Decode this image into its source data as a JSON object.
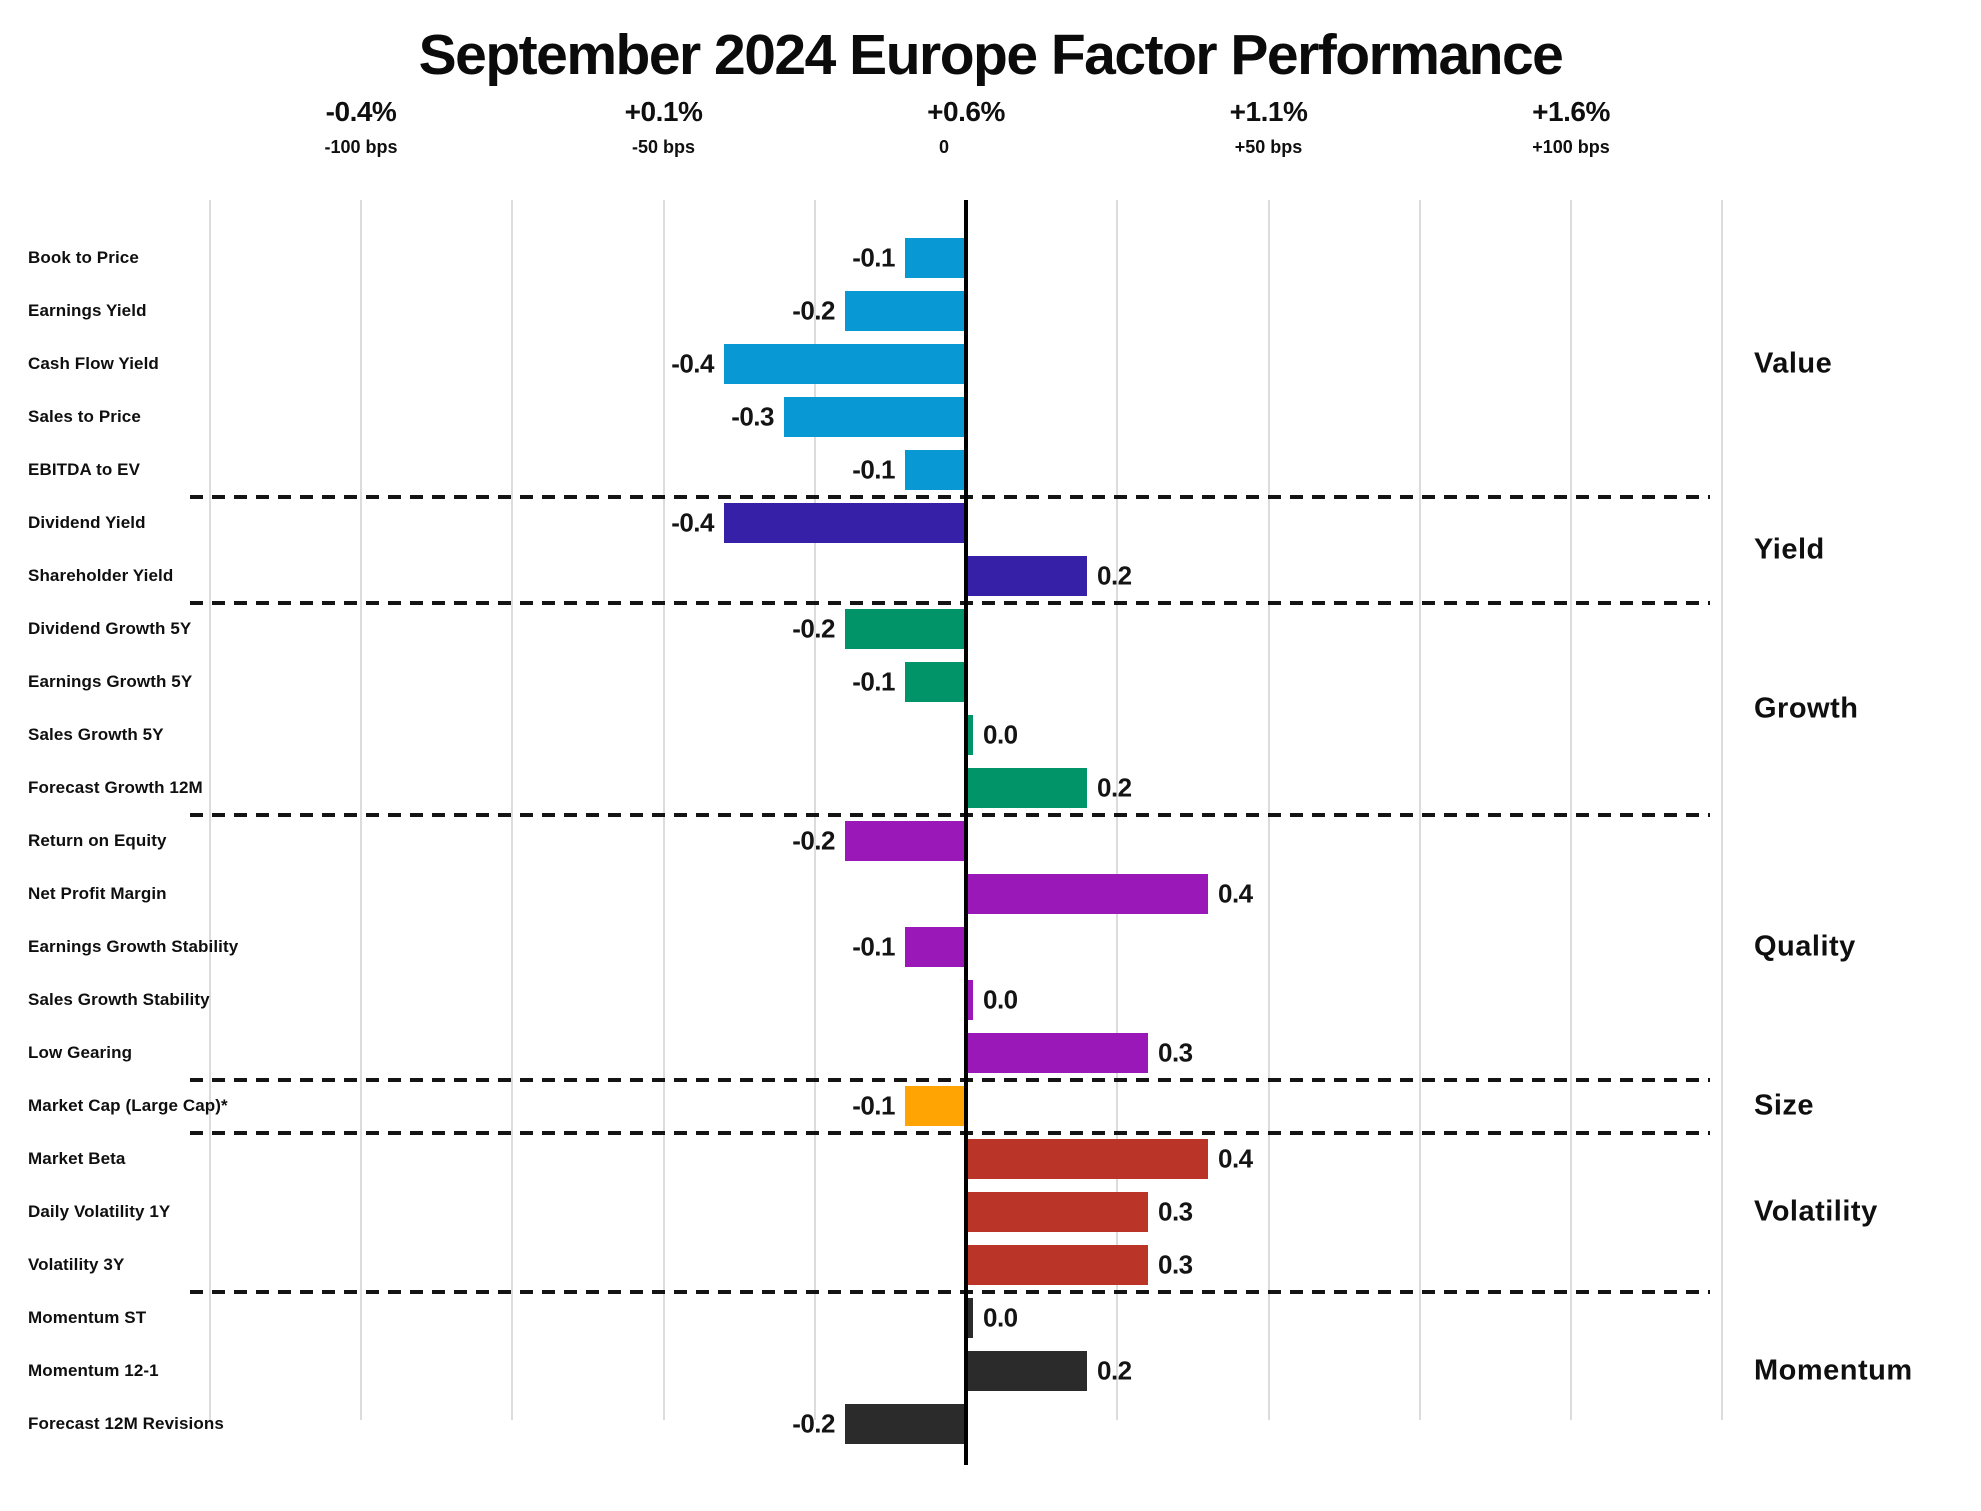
{
  "title": "September 2024 Europe Factor Performance",
  "chart_data": {
    "type": "bar",
    "orientation": "horizontal",
    "title": "September 2024 Europe Factor Performance",
    "value_unit": "percent",
    "x_axis": {
      "ticks": [
        {
          "pct_label": "-0.4%",
          "bps_label": "-100 bps",
          "bps": -100
        },
        {
          "pct_label": "+0.1%",
          "bps_label": "-50 bps",
          "bps": -50
        },
        {
          "pct_label": "+0.6%",
          "bps_label": "0",
          "bps": 0
        },
        {
          "pct_label": "+1.1%",
          "bps_label": "+50 bps",
          "bps": 50
        },
        {
          "pct_label": "+1.6%",
          "bps_label": "+100 bps",
          "bps": 100
        }
      ],
      "range_bps": [
        -125,
        125
      ],
      "minor_grid_step_bps": 25,
      "grid": true
    },
    "legend_position": "right-section-labels",
    "groups": [
      {
        "name": "Value",
        "color": "#0898d4",
        "factors": [
          {
            "label": "Book to Price",
            "value": -0.1
          },
          {
            "label": "Earnings Yield",
            "value": -0.2
          },
          {
            "label": "Cash Flow Yield",
            "value": -0.4
          },
          {
            "label": "Sales to Price",
            "value": -0.3
          },
          {
            "label": "EBITDA to EV",
            "value": -0.1
          }
        ]
      },
      {
        "name": "Yield",
        "color": "#3620a8",
        "factors": [
          {
            "label": "Dividend Yield",
            "value": -0.4
          },
          {
            "label": "Shareholder Yield",
            "value": 0.2
          }
        ]
      },
      {
        "name": "Growth",
        "color": "#019468",
        "factors": [
          {
            "label": "Dividend Growth 5Y",
            "value": -0.2
          },
          {
            "label": "Earnings Growth 5Y",
            "value": -0.1
          },
          {
            "label": "Sales Growth 5Y",
            "value": 0.0
          },
          {
            "label": "Forecast Growth 12M",
            "value": 0.2
          }
        ]
      },
      {
        "name": "Quality",
        "color": "#9a17b8",
        "factors": [
          {
            "label": "Return on Equity",
            "value": -0.2
          },
          {
            "label": "Net Profit Margin",
            "value": 0.4
          },
          {
            "label": "Earnings Growth Stability",
            "value": -0.1
          },
          {
            "label": "Sales Growth Stability",
            "value": 0.0
          },
          {
            "label": "Low Gearing",
            "value": 0.3
          }
        ]
      },
      {
        "name": "Size",
        "color": "#ffa402",
        "factors": [
          {
            "label": "Market Cap (Large Cap)*",
            "value": -0.1
          }
        ]
      },
      {
        "name": "Volatility",
        "color": "#ba3528",
        "factors": [
          {
            "label": "Market Beta",
            "value": 0.4
          },
          {
            "label": "Daily Volatility 1Y",
            "value": 0.3
          },
          {
            "label": "Volatility 3Y",
            "value": 0.3
          }
        ]
      },
      {
        "name": "Momentum",
        "color": "#2b2b2b",
        "factors": [
          {
            "label": "Momentum ST",
            "value": 0.0
          },
          {
            "label": "Momentum 12-1",
            "value": 0.2
          },
          {
            "label": "Forecast 12M Revisions",
            "value": -0.2
          }
        ]
      }
    ]
  }
}
